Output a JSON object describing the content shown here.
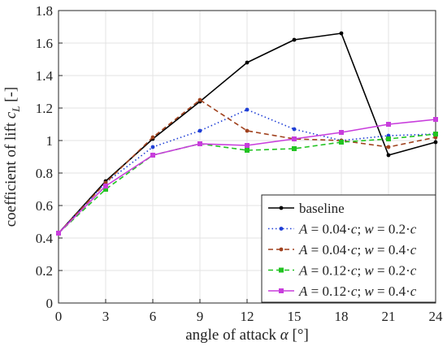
{
  "chart_data": {
    "type": "line",
    "xlabel": "angle of attack α [°]",
    "ylabel": "coefficient of lift  c_L [-]",
    "xlim": [
      0,
      24
    ],
    "ylim": [
      0,
      1.8
    ],
    "x_ticks": [
      0,
      3,
      6,
      9,
      12,
      15,
      18,
      21,
      24
    ],
    "y_ticks": [
      0,
      0.2,
      0.4,
      0.6,
      0.8,
      1,
      1.2,
      1.4,
      1.6,
      1.8
    ],
    "grid": true,
    "legend_position": "bottom-right",
    "x": [
      0,
      3,
      6,
      9,
      12,
      15,
      18,
      21,
      24
    ],
    "series": [
      {
        "name": "baseline",
        "label_parts": [
          "baseline"
        ],
        "color": "#000000",
        "line_style": "solid",
        "marker": "dot",
        "values": [
          0.43,
          0.75,
          1.01,
          1.24,
          1.48,
          1.62,
          1.66,
          0.91,
          0.99
        ]
      },
      {
        "name": "A = 0.04·c; w = 0.2·c",
        "label_parts": [
          "A",
          " = 0.04·",
          "c",
          "; ",
          "w",
          " = 0.2·",
          "c"
        ],
        "color": "#1f3fd6",
        "line_style": "dotted",
        "marker": "dot",
        "values": [
          0.43,
          0.74,
          0.96,
          1.06,
          1.19,
          1.07,
          1.0,
          1.03,
          1.04
        ]
      },
      {
        "name": "A = 0.04·c; w = 0.4·c",
        "label_parts": [
          "A",
          " = 0.04·",
          "c",
          "; ",
          "w",
          " = 0.4·",
          "c"
        ],
        "color": "#a0411d",
        "line_style": "dashed",
        "marker": "dot",
        "values": [
          0.43,
          0.74,
          1.02,
          1.25,
          1.06,
          1.01,
          1.0,
          0.96,
          1.02
        ]
      },
      {
        "name": "A = 0.12·c; w = 0.2·c",
        "label_parts": [
          "A",
          " = 0.12·",
          "c",
          "; ",
          "w",
          " = 0.2·",
          "c"
        ],
        "color": "#22c322",
        "line_style": "dashed",
        "marker": "square",
        "values": [
          0.43,
          0.7,
          0.91,
          0.98,
          0.94,
          0.95,
          0.99,
          1.01,
          1.04
        ]
      },
      {
        "name": "A = 0.12·c; w = 0.4·c",
        "label_parts": [
          "A",
          " = 0.12·",
          "c",
          "; ",
          "w",
          " = 0.4·",
          "c"
        ],
        "color": "#c83ddc",
        "line_style": "solid",
        "marker": "square",
        "values": [
          0.43,
          0.72,
          0.91,
          0.98,
          0.97,
          1.01,
          1.05,
          1.1,
          1.13
        ]
      }
    ]
  }
}
